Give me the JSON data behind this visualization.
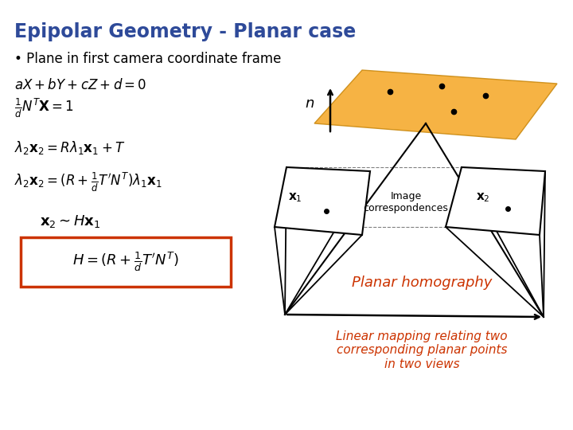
{
  "title": "Epipolar Geometry - Planar case",
  "title_color": "#2E4A99",
  "title_fontsize": 17,
  "bg_color": "#ffffff",
  "bullet_text": "Plane in first camera coordinate frame",
  "bullet_fontsize": 12,
  "plane_color": "#f5a623",
  "plane_alpha": 0.85,
  "box_color": "#cc3300",
  "planar_homography_text": "Planar homography",
  "planar_homography_color": "#cc3300",
  "planar_homography_fontsize": 13,
  "linear_mapping_text": "Linear mapping relating two\ncorresponding planar points\nin two views",
  "linear_mapping_color": "#cc3300",
  "linear_mapping_fontsize": 11,
  "image_corr_text": "Image\ncorrespondences",
  "image_corr_fontsize": 9
}
